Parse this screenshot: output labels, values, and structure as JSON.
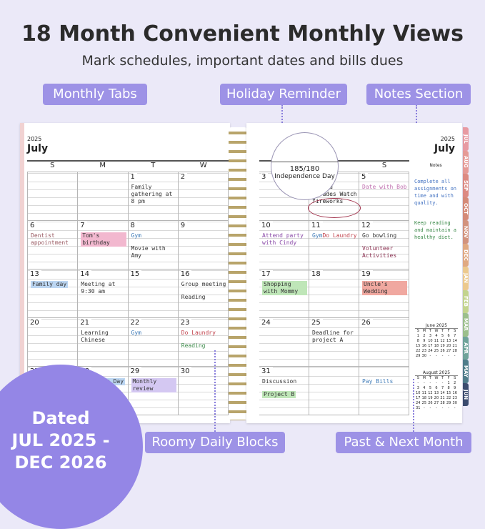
{
  "header": {
    "title": "18 Month Convenient Monthly Views",
    "subtitle": "Mark schedules, important dates and bills dues"
  },
  "callouts": {
    "monthly_tabs": "Monthly Tabs",
    "holiday_reminder": "Holiday Reminder",
    "notes_section": "Notes Section",
    "roomy_daily_blocks": "Roomy Daily Blocks",
    "past_next_month": "Past & Next Month"
  },
  "badge": {
    "line1": "Dated",
    "line2": "JUL 2025 -",
    "line3": "DEC 2026"
  },
  "left_page": {
    "year": "2025",
    "month": "July",
    "weekdays": [
      "S",
      "M",
      "T",
      "W"
    ],
    "cells": [
      {
        "n": "",
        "e": []
      },
      {
        "n": "",
        "e": []
      },
      {
        "n": "1",
        "e": [
          {
            "t": "Family gathering at 8 pm",
            "c": "#333"
          }
        ]
      },
      {
        "n": "2",
        "e": []
      },
      {
        "n": "6",
        "e": [
          {
            "t": "Dentist appointment",
            "c": "#9a5a62"
          }
        ]
      },
      {
        "n": "7",
        "e": [
          {
            "t": "Tom's birthday",
            "c": "#333",
            "h": "#f2b8cf"
          }
        ]
      },
      {
        "n": "8",
        "e": [
          {
            "t": "Gym",
            "c": "#3f7bb8"
          },
          {
            "t": "Movie with Amy",
            "c": "#333"
          }
        ]
      },
      {
        "n": "9",
        "e": []
      },
      {
        "n": "13",
        "e": [
          {
            "t": "Family day",
            "c": "#333",
            "h": "#bcd6f2"
          }
        ]
      },
      {
        "n": "14",
        "e": [
          {
            "t": "Meeting at 9:30 am",
            "c": "#333"
          }
        ]
      },
      {
        "n": "15",
        "e": []
      },
      {
        "n": "16",
        "e": [
          {
            "t": "Group meeting",
            "c": "#333"
          },
          {
            "t": "Reading",
            "c": "#333"
          }
        ]
      },
      {
        "n": "20",
        "e": []
      },
      {
        "n": "21",
        "e": [
          {
            "t": "Learning Chinese",
            "c": "#333"
          }
        ]
      },
      {
        "n": "22",
        "e": [
          {
            "t": "Gym",
            "c": "#3f7bb8"
          }
        ]
      },
      {
        "n": "23",
        "e": [
          {
            "t": "Do Laundry",
            "c": "#c0404a"
          },
          {
            "t": "Reading",
            "c": "#3c8a4a"
          }
        ]
      },
      {
        "n": "27",
        "e": []
      },
      {
        "n": "28",
        "e": [
          {
            "t": "Swimming Day",
            "c": "#333",
            "h": "#bcd6f2"
          }
        ]
      },
      {
        "n": "29",
        "e": [
          {
            "t": "Monthly review",
            "c": "#333",
            "h": "#d4c8f2"
          }
        ]
      },
      {
        "n": "30",
        "e": []
      }
    ]
  },
  "right_page": {
    "year": "2025",
    "month": "July",
    "weekdays": [
      "",
      "",
      "S"
    ],
    "notes_label": "Notes",
    "holiday": {
      "day_count": "185/180",
      "name": "Independence Day"
    },
    "cells": [
      {
        "n": "3",
        "e": []
      },
      {
        "n": "4",
        "e": [
          {
            "t": "Attend parades Watch fireworks",
            "c": "#222"
          }
        ]
      },
      {
        "n": "5",
        "e": [
          {
            "t": "Date with Bob",
            "c": "#c070b0"
          }
        ]
      },
      {
        "n": "10",
        "e": [
          {
            "t": "Attend party with Cindy",
            "c": "#8a4aa8"
          }
        ]
      },
      {
        "n": "11",
        "e": [
          {
            "t": "Gym",
            "c": "#3f7bb8"
          },
          {
            "t": "Do Laundry",
            "c": "#c0404a"
          }
        ]
      },
      {
        "n": "12",
        "e": [
          {
            "t": "Go bowling",
            "c": "#333"
          },
          {
            "t": "Volunteer Activities",
            "c": "#8a3050"
          }
        ]
      },
      {
        "n": "17",
        "e": [
          {
            "t": "Shopping with Mommy",
            "c": "#333",
            "h": "#bfe6b8"
          }
        ]
      },
      {
        "n": "18",
        "e": []
      },
      {
        "n": "19",
        "e": [
          {
            "t": "Uncle's Wedding",
            "c": "#333",
            "h": "#f0a8a0"
          }
        ]
      },
      {
        "n": "24",
        "e": []
      },
      {
        "n": "25",
        "e": [
          {
            "t": "Deadline for project A",
            "c": "#333"
          }
        ]
      },
      {
        "n": "26",
        "e": []
      },
      {
        "n": "31",
        "e": [
          {
            "t": "Discussion",
            "c": "#333"
          },
          {
            "t": "Project B",
            "c": "#333",
            "h": "#bfe6b8"
          }
        ]
      },
      {
        "n": "",
        "e": []
      },
      {
        "n": "",
        "e": [
          {
            "t": "Pay Bills",
            "c": "#3f7bb8"
          }
        ]
      }
    ],
    "notes": [
      {
        "t": "Complete all assignments on time and with quality.",
        "c": "#3f6fc0"
      },
      {
        "t": "Keep reading and maintain a healthy diet.",
        "c": "#3c8a4a"
      }
    ],
    "mini_calendars": [
      {
        "title": "June 2025",
        "head": [
          "S",
          "M",
          "T",
          "W",
          "T",
          "F",
          "S"
        ],
        "days": [
          "1",
          "2",
          "3",
          "4",
          "5",
          "6",
          "7",
          "8",
          "9",
          "10",
          "11",
          "12",
          "13",
          "14",
          "15",
          "16",
          "17",
          "18",
          "19",
          "20",
          "21",
          "22",
          "23",
          "24",
          "25",
          "26",
          "27",
          "28",
          "29",
          "30",
          "-",
          "-",
          "-",
          "-",
          "-"
        ]
      },
      {
        "title": "August 2025",
        "head": [
          "S",
          "M",
          "T",
          "W",
          "T",
          "F",
          "S"
        ],
        "days": [
          "-",
          "-",
          "-",
          "-",
          "-",
          "1",
          "2",
          "3",
          "4",
          "5",
          "6",
          "7",
          "8",
          "9",
          "10",
          "11",
          "12",
          "13",
          "14",
          "15",
          "16",
          "17",
          "18",
          "19",
          "20",
          "21",
          "22",
          "23",
          "24",
          "25",
          "26",
          "27",
          "28",
          "29",
          "30",
          "31",
          "-",
          "-",
          "-",
          "-",
          "-",
          "-"
        ]
      }
    ]
  },
  "tabs": [
    {
      "l": "JUL",
      "c": "#e79aa2"
    },
    {
      "l": "AUG",
      "c": "#e59a96"
    },
    {
      "l": "SEP",
      "c": "#dc8a82"
    },
    {
      "l": "OCT",
      "c": "#d48a78"
    },
    {
      "l": "NOV",
      "c": "#d2937e"
    },
    {
      "l": "DEC",
      "c": "#e0a982"
    },
    {
      "l": "JAN",
      "c": "#ecc98e"
    },
    {
      "l": "FEB",
      "c": "#c3d48e"
    },
    {
      "l": "MAR",
      "c": "#9cbf8c"
    },
    {
      "l": "APR",
      "c": "#6fa39a"
    },
    {
      "l": "MAY",
      "c": "#4f7c8a"
    },
    {
      "l": "JUN",
      "c": "#3b4b6e"
    }
  ]
}
